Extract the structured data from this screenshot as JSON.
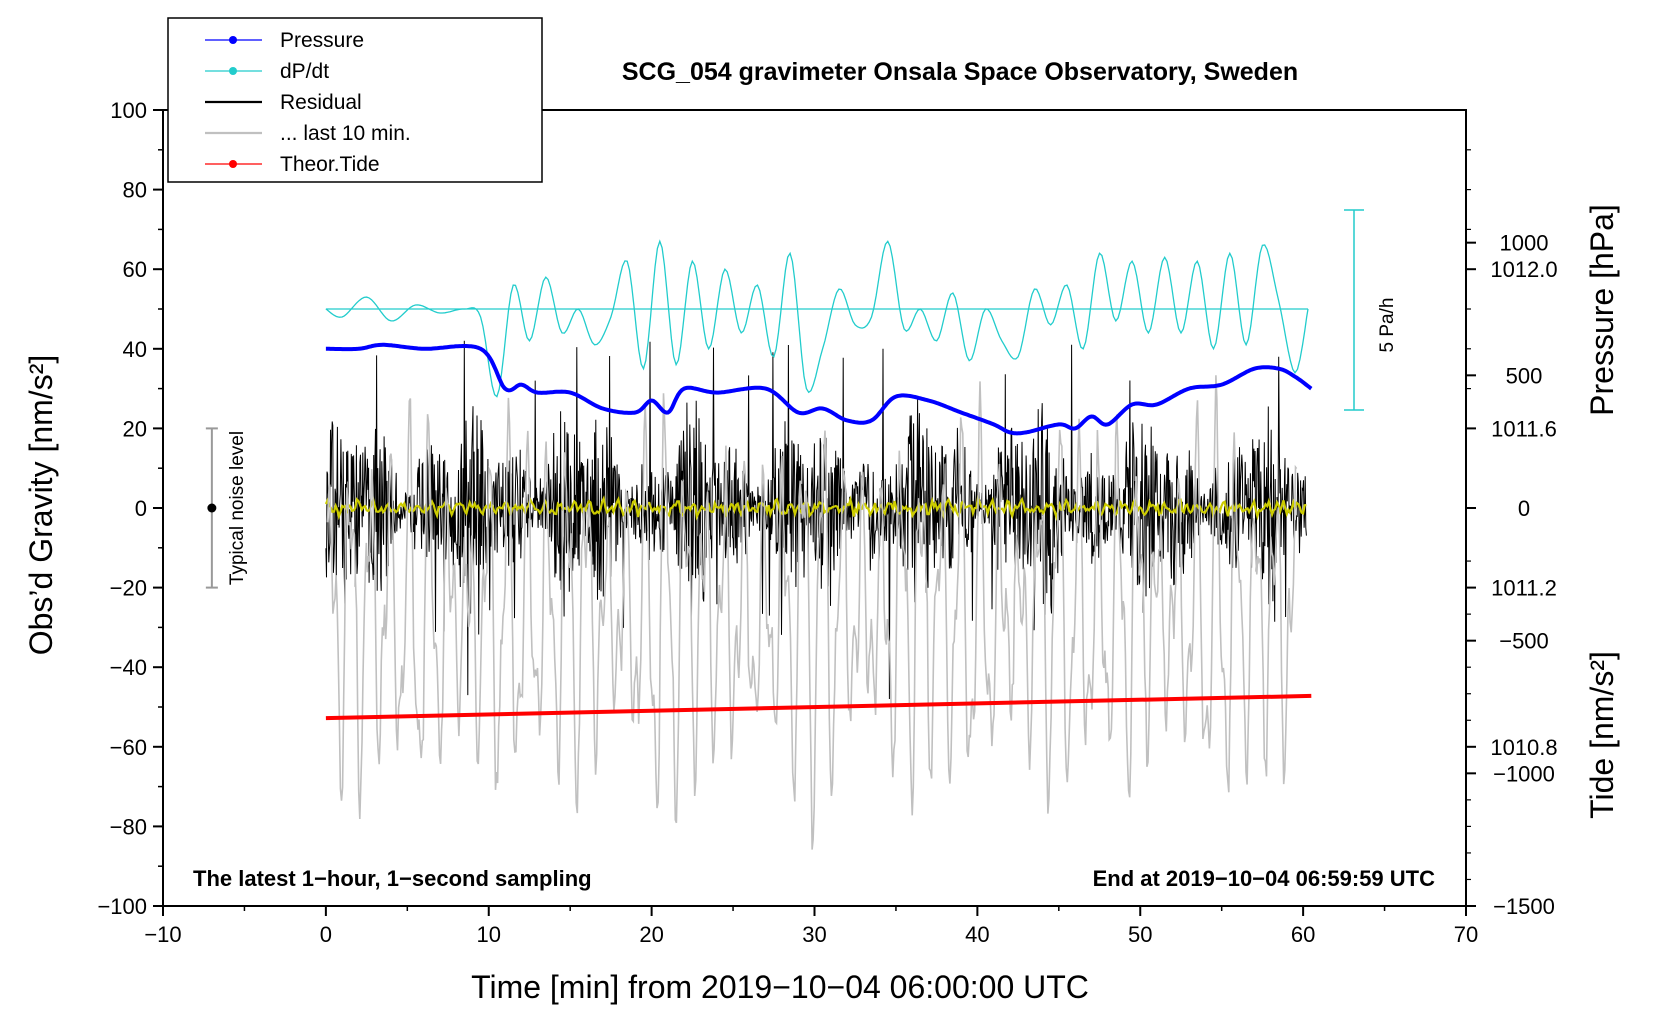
{
  "chart_data": {
    "type": "line",
    "title": "SCG_054 gravimeter Onsala Space Observatory, Sweden",
    "xlabel": "Time [min] from 2019−10−04 06:00:00 UTC",
    "ylabel_left": "Obs’d Gravity [nm/s²]",
    "ylabel_right_pressure": "Pressure [hPa]",
    "ylabel_right_tide": "Tide [nm/s²]",
    "xlim": [
      -10,
      70
    ],
    "ylim": [
      -100,
      100
    ],
    "pressure_ylim": [
      1010.4,
      1012.4
    ],
    "tide_ylim": [
      -1500,
      1500
    ],
    "x_ticks": [
      -10,
      0,
      10,
      20,
      30,
      40,
      50,
      60,
      70
    ],
    "x_tick_labels": [
      "−10",
      "0",
      "10",
      "20",
      "30",
      "40",
      "50",
      "60",
      "70"
    ],
    "y_ticks": [
      -100,
      -80,
      -60,
      -40,
      -20,
      0,
      20,
      40,
      60,
      80,
      100
    ],
    "y_tick_labels": [
      "−100",
      "−80",
      "−60",
      "−40",
      "−20",
      "0",
      "20",
      "40",
      "60",
      "80",
      "100"
    ],
    "pressure_ticks": [
      1010.8,
      1011.2,
      1011.6,
      1012.0
    ],
    "pressure_tick_labels": [
      "1010.8",
      "1011.2",
      "1011.6",
      "1012.0"
    ],
    "tide_ticks": [
      -1500,
      -1000,
      -500,
      0,
      500,
      1000
    ],
    "tide_tick_labels": [
      "−1500",
      "−1000",
      "−500",
      "0",
      "500",
      "1000"
    ],
    "legend": [
      {
        "label": "Pressure",
        "color": "#0000ff",
        "marker": true
      },
      {
        "label": "dP/dt",
        "color": "#22cccc",
        "marker": true
      },
      {
        "label": "Residual",
        "color": "#000000",
        "marker": false
      },
      {
        "label": "... last 10 min.",
        "color": "#c0c0c0",
        "marker": false
      },
      {
        "label": "Theor.Tide",
        "color": "#ff0000",
        "marker": true
      }
    ],
    "series": [
      {
        "name": "Pressure",
        "axis": "pressure",
        "color": "#0000ff",
        "x": [
          0,
          2,
          3.5,
          6,
          9.5,
          11,
          12,
          13,
          15,
          17,
          19,
          20,
          21,
          22,
          24,
          27,
          29,
          30.5,
          32,
          33.5,
          35,
          37,
          39,
          41,
          42,
          43,
          45,
          46,
          47,
          48,
          49.5,
          51,
          53,
          55,
          57,
          58.5,
          59.5,
          60.5
        ],
        "values": [
          1011.8,
          1011.8,
          1011.81,
          1011.8,
          1011.8,
          1011.7,
          1011.71,
          1011.69,
          1011.69,
          1011.65,
          1011.64,
          1011.67,
          1011.64,
          1011.7,
          1011.69,
          1011.7,
          1011.64,
          1011.65,
          1011.62,
          1011.62,
          1011.68,
          1011.67,
          1011.64,
          1011.61,
          1011.59,
          1011.59,
          1011.61,
          1011.6,
          1011.63,
          1011.61,
          1011.66,
          1011.66,
          1011.7,
          1011.71,
          1011.75,
          1011.75,
          1011.73,
          1011.7
        ]
      },
      {
        "name": "dP/dt",
        "axis": "left",
        "color": "#22cccc",
        "baseline": 50,
        "scale_label": "5 Pa/h",
        "x": [
          0,
          1,
          2.5,
          4,
          5.5,
          7,
          8.5,
          9.5,
          10.5,
          11.5,
          12.5,
          13.5,
          14.5,
          15.5,
          16.5,
          17.5,
          18.5,
          19.5,
          20.5,
          21.5,
          22.5,
          23.5,
          24.5,
          25.5,
          26.5,
          27.5,
          28.5,
          29.5,
          30.5,
          31.5,
          32.5,
          33.5,
          34.5,
          35.5,
          36.5,
          37.5,
          38.5,
          39.5,
          40.5,
          41.5,
          42.5,
          43.5,
          44.5,
          45.5,
          46.5,
          47.5,
          48.5,
          49.5,
          50.5,
          51.5,
          52.5,
          53.5,
          54.5,
          55.5,
          56.5,
          57.5,
          58.5,
          59.5,
          60.3
        ],
        "values": [
          50,
          48,
          53,
          47,
          51,
          49,
          50,
          48,
          28,
          56,
          42,
          58,
          44,
          50,
          41,
          48,
          62,
          35,
          67,
          36,
          62,
          40,
          60,
          44,
          56,
          38,
          64,
          30,
          40,
          55,
          46,
          48,
          67,
          45,
          50,
          42,
          54,
          37,
          50,
          42,
          38,
          55,
          46,
          56,
          40,
          64,
          47,
          62,
          44,
          63,
          44,
          62,
          40,
          64,
          41,
          66,
          52,
          34,
          50
        ]
      },
      {
        "name": "Residual",
        "axis": "left",
        "color": "#000000",
        "typical_amplitude": 20,
        "range": [
          -47,
          43
        ]
      },
      {
        "name": "Residual smoothed",
        "axis": "left",
        "color": "#cccc00",
        "typical_amplitude": 2
      },
      {
        "name": "... last 10 min.",
        "axis": "tide",
        "color": "#c0c0c0",
        "range": [
          -1300,
          500
        ]
      },
      {
        "name": "Theor.Tide",
        "axis": "left",
        "color": "#ff0000",
        "x": [
          0,
          60.5
        ],
        "values": [
          -52.8,
          -47.2
        ]
      }
    ],
    "noise_indicator": {
      "label": "Typical noise level",
      "x": -7,
      "center": 0,
      "low": -20,
      "high": 20
    },
    "annotations": {
      "bottom_left": "The latest 1−hour, 1−second sampling",
      "bottom_right": "End at 2019−10−04 06:59:59 UTC"
    }
  }
}
